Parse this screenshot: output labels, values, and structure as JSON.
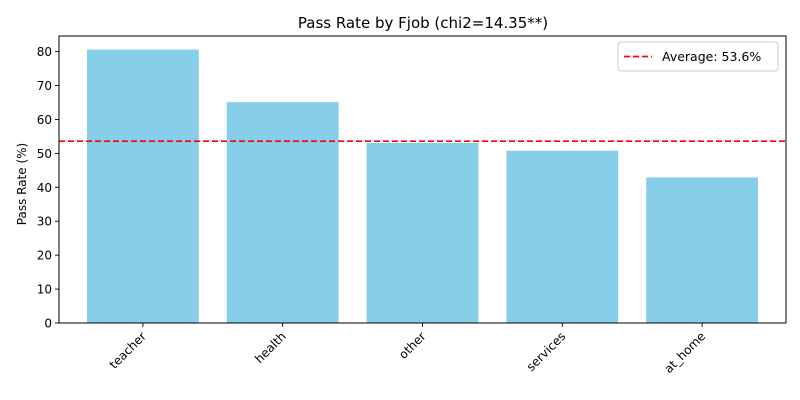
{
  "chart_data": {
    "type": "bar",
    "title": "Pass Rate by Fjob (chi2=14.35**)",
    "xlabel": "",
    "ylabel": "Pass Rate (%)",
    "categories": [
      "teacher",
      "health",
      "other",
      "services",
      "at_home"
    ],
    "values": [
      80.6,
      65.1,
      53.1,
      50.8,
      42.9
    ],
    "ylim": [
      0,
      84.6
    ],
    "yticks": [
      0,
      10,
      20,
      30,
      40,
      50,
      60,
      70,
      80
    ],
    "bar_color": "#87ceeb",
    "reference_line": {
      "value": 53.6,
      "label": "Average: 53.6%",
      "color": "#ff0000",
      "style": "dashed"
    },
    "legend": {
      "position": "top-right",
      "entries": [
        "Average: 53.6%"
      ]
    },
    "grid": false
  }
}
